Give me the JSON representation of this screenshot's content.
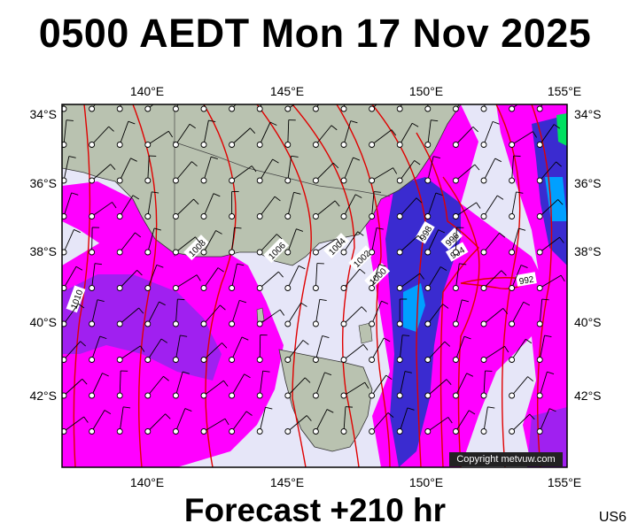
{
  "title": "0500 AEDT Mon 17 Nov 2025",
  "subtitle": "Forecast +210 hr",
  "model_code": "US6",
  "copyright": "Copyright metvuw.com",
  "axes": {
    "lon_ticks": [
      "140°E",
      "145°E",
      "150°E",
      "155°E"
    ],
    "lat_ticks": [
      "34°S",
      "36°S",
      "38°S",
      "40°S",
      "42°S"
    ]
  },
  "isobars": [
    "1010",
    "1008",
    "1006",
    "1004",
    "1002",
    "1000",
    "998",
    "996",
    "994",
    "992"
  ],
  "colors": {
    "ocean": "#e6e6f8",
    "land": "#b9c2b0",
    "isobar": "#e00000",
    "rain_light": "#ff00ff",
    "rain_moderate": "#a020f0",
    "rain_heavy": "#3a2bd0",
    "rain_very_heavy": "#00a0ff",
    "rain_extreme": "#00e060"
  }
}
